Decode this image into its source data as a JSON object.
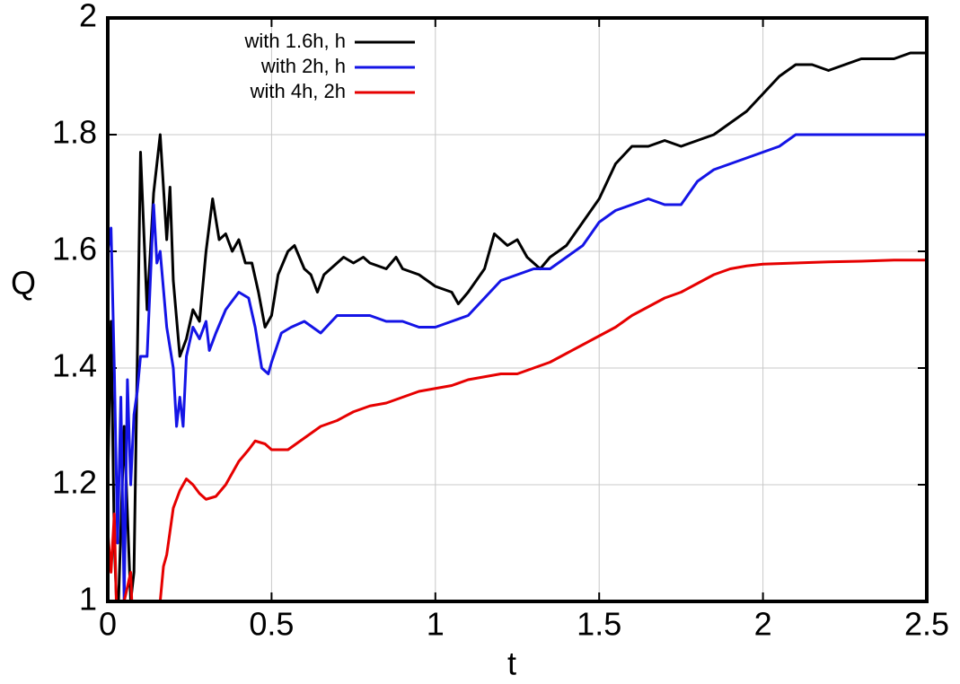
{
  "chart_data": {
    "type": "line",
    "xlabel": "t",
    "ylabel": "Q",
    "xlim": [
      0,
      2.5
    ],
    "ylim": [
      1,
      2
    ],
    "xticks": [
      0,
      0.5,
      1,
      1.5,
      2,
      2.5
    ],
    "yticks": [
      1,
      1.2,
      1.4,
      1.6,
      1.8,
      2
    ],
    "grid": true,
    "legend": "upper-left",
    "series": [
      {
        "name": "with 1.6h, h",
        "color": "#000000",
        "x": [
          0,
          0.01,
          0.02,
          0.03,
          0.05,
          0.07,
          0.08,
          0.1,
          0.12,
          0.14,
          0.16,
          0.18,
          0.19,
          0.2,
          0.22,
          0.24,
          0.26,
          0.28,
          0.3,
          0.32,
          0.34,
          0.36,
          0.38,
          0.4,
          0.42,
          0.44,
          0.46,
          0.48,
          0.5,
          0.52,
          0.55,
          0.57,
          0.6,
          0.62,
          0.64,
          0.66,
          0.7,
          0.72,
          0.75,
          0.78,
          0.8,
          0.85,
          0.88,
          0.9,
          0.95,
          1.0,
          1.05,
          1.07,
          1.1,
          1.15,
          1.18,
          1.22,
          1.25,
          1.28,
          1.32,
          1.35,
          1.4,
          1.45,
          1.5,
          1.55,
          1.6,
          1.65,
          1.7,
          1.75,
          1.8,
          1.85,
          1.9,
          1.95,
          2.0,
          2.05,
          2.1,
          2.15,
          2.2,
          2.25,
          2.3,
          2.35,
          2.4,
          2.45,
          2.5
        ],
        "values": [
          1.2,
          1.48,
          1.1,
          0.95,
          1.3,
          1.0,
          1.05,
          1.77,
          1.5,
          1.7,
          1.8,
          1.62,
          1.71,
          1.55,
          1.42,
          1.45,
          1.5,
          1.48,
          1.6,
          1.69,
          1.62,
          1.63,
          1.6,
          1.62,
          1.58,
          1.58,
          1.53,
          1.47,
          1.49,
          1.56,
          1.6,
          1.61,
          1.57,
          1.56,
          1.53,
          1.56,
          1.58,
          1.59,
          1.58,
          1.59,
          1.58,
          1.57,
          1.59,
          1.57,
          1.56,
          1.54,
          1.53,
          1.51,
          1.53,
          1.57,
          1.63,
          1.61,
          1.62,
          1.59,
          1.57,
          1.59,
          1.61,
          1.65,
          1.69,
          1.75,
          1.78,
          1.78,
          1.79,
          1.78,
          1.79,
          1.8,
          1.82,
          1.84,
          1.87,
          1.9,
          1.92,
          1.92,
          1.91,
          1.92,
          1.93,
          1.93,
          1.93,
          1.94,
          1.94
        ]
      },
      {
        "name": "with 2h, h",
        "color": "#1414e6",
        "x": [
          0,
          0.01,
          0.02,
          0.03,
          0.04,
          0.05,
          0.06,
          0.07,
          0.08,
          0.09,
          0.1,
          0.12,
          0.14,
          0.15,
          0.16,
          0.18,
          0.2,
          0.21,
          0.22,
          0.23,
          0.24,
          0.26,
          0.28,
          0.3,
          0.31,
          0.33,
          0.36,
          0.4,
          0.43,
          0.45,
          0.47,
          0.49,
          0.5,
          0.53,
          0.56,
          0.6,
          0.65,
          0.7,
          0.75,
          0.8,
          0.85,
          0.9,
          0.95,
          1.0,
          1.05,
          1.1,
          1.15,
          1.2,
          1.25,
          1.3,
          1.35,
          1.4,
          1.45,
          1.5,
          1.55,
          1.6,
          1.65,
          1.7,
          1.75,
          1.8,
          1.85,
          1.9,
          1.95,
          2.0,
          2.05,
          2.1,
          2.2,
          2.3,
          2.4,
          2.5
        ],
        "values": [
          1.6,
          1.64,
          1.4,
          1.1,
          1.35,
          1.0,
          1.38,
          1.2,
          1.32,
          1.36,
          1.42,
          1.42,
          1.68,
          1.58,
          1.6,
          1.47,
          1.4,
          1.3,
          1.35,
          1.3,
          1.42,
          1.47,
          1.45,
          1.48,
          1.43,
          1.46,
          1.5,
          1.53,
          1.52,
          1.47,
          1.4,
          1.39,
          1.41,
          1.46,
          1.47,
          1.48,
          1.46,
          1.49,
          1.49,
          1.49,
          1.48,
          1.48,
          1.47,
          1.47,
          1.48,
          1.49,
          1.52,
          1.55,
          1.56,
          1.57,
          1.57,
          1.59,
          1.61,
          1.65,
          1.67,
          1.68,
          1.69,
          1.68,
          1.68,
          1.72,
          1.74,
          1.75,
          1.76,
          1.77,
          1.78,
          1.8,
          1.8,
          1.8,
          1.8,
          1.8
        ]
      },
      {
        "name": "with 4h, 2h",
        "color": "#e60000",
        "x": [
          0,
          0.01,
          0.02,
          0.03,
          0.05,
          0.07,
          0.08,
          0.09,
          0.1,
          0.12,
          0.16,
          0.17,
          0.18,
          0.2,
          0.22,
          0.24,
          0.26,
          0.28,
          0.3,
          0.33,
          0.36,
          0.4,
          0.43,
          0.45,
          0.48,
          0.5,
          0.55,
          0.6,
          0.65,
          0.7,
          0.75,
          0.8,
          0.85,
          0.9,
          0.95,
          1.0,
          1.05,
          1.1,
          1.15,
          1.2,
          1.25,
          1.3,
          1.35,
          1.4,
          1.45,
          1.5,
          1.55,
          1.6,
          1.65,
          1.7,
          1.75,
          1.8,
          1.85,
          1.9,
          1.95,
          2.0,
          2.1,
          2.2,
          2.3,
          2.4,
          2.5
        ],
        "values": [
          1.12,
          1.05,
          1.15,
          0.9,
          1.0,
          1.05,
          0.9,
          1.0,
          0.9,
          0.8,
          1.0,
          1.06,
          1.08,
          1.16,
          1.19,
          1.21,
          1.2,
          1.185,
          1.175,
          1.18,
          1.2,
          1.24,
          1.26,
          1.275,
          1.27,
          1.26,
          1.26,
          1.28,
          1.3,
          1.31,
          1.325,
          1.335,
          1.34,
          1.35,
          1.36,
          1.365,
          1.37,
          1.38,
          1.385,
          1.39,
          1.39,
          1.4,
          1.41,
          1.425,
          1.44,
          1.455,
          1.47,
          1.49,
          1.505,
          1.52,
          1.53,
          1.545,
          1.56,
          1.57,
          1.575,
          1.578,
          1.58,
          1.582,
          1.583,
          1.585,
          1.585
        ]
      }
    ]
  }
}
